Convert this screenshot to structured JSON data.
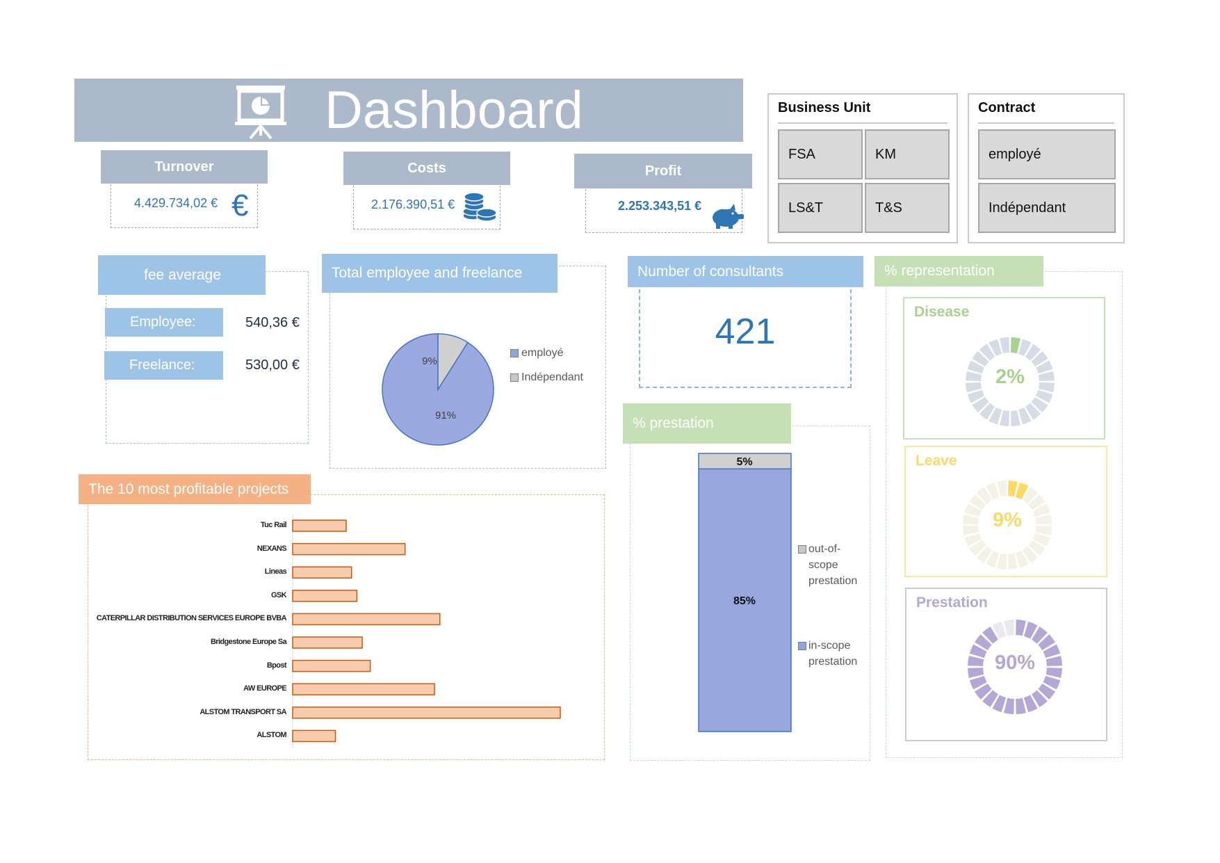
{
  "header": {
    "title": "Dashboard",
    "icon": "presentation-chart-icon",
    "color": "#acb9ca"
  },
  "kpis": {
    "turnover": {
      "label": "Turnover",
      "value": "4.429.734,02 €",
      "icon": "euro-icon"
    },
    "costs": {
      "label": "Costs",
      "value": "2.176.390,51 €",
      "icon": "coins-icon"
    },
    "profit": {
      "label": "Profit",
      "value": "2.253.343,51 €",
      "icon": "piggy-bank-icon"
    }
  },
  "slicers": {
    "business_unit": {
      "title": "Business Unit",
      "items": [
        "FSA",
        "KM",
        "LS&T",
        "T&S"
      ]
    },
    "contract": {
      "title": "Contract",
      "items": [
        "employé",
        "Indépendant"
      ]
    }
  },
  "fee_average": {
    "title": "fee average",
    "employee_label": "Employee:",
    "employee_value": "540,36 €",
    "freelance_label": "Freelance:",
    "freelance_value": "530,00 €"
  },
  "total_employee": {
    "title": "Total employee and freelance"
  },
  "consultants": {
    "title": "Number of consultants",
    "value": "421"
  },
  "prestation": {
    "title": "% prestation"
  },
  "projects": {
    "title": "The 10 most profitable projects"
  },
  "representation": {
    "title": "% representation",
    "items": [
      {
        "label": "Disease",
        "pct_label": "2%",
        "fraction": 0.02,
        "color": "#a9d18e",
        "track": "#d6dce5",
        "border": "#c5e0b4"
      },
      {
        "label": "Leave",
        "pct_label": "9%",
        "fraction": 0.09,
        "color": "#ffd966",
        "track": "#f2f2e6",
        "border": "#ffe699"
      },
      {
        "label": "Prestation",
        "pct_label": "90%",
        "fraction": 0.9,
        "color": "#b4a7d6",
        "track": "#e8e8ee",
        "border": "#c9c9dd"
      }
    ]
  },
  "chart_data": [
    {
      "type": "pie",
      "title": "Total employee and freelance",
      "categories": [
        "employé",
        "Indépendant"
      ],
      "values": [
        91,
        9
      ],
      "labels": [
        "91%",
        "9%"
      ],
      "colors": [
        "#9aaae0",
        "#d0d0d0"
      ]
    },
    {
      "type": "bar",
      "title": "% prestation",
      "stacked": true,
      "series": [
        {
          "name": "in-scope prestation",
          "values": [
            85
          ],
          "label": "85%",
          "color": "#97a7dc"
        },
        {
          "name": "out-of-scope prestation",
          "values": [
            5
          ],
          "label": "5%",
          "color": "#d0d0d0"
        }
      ],
      "legend": [
        {
          "name": "out-of-\nscope\nprestation",
          "color": "#c8c8c8"
        },
        {
          "name": "in-scope\nprestation",
          "color": "#8fa6dc"
        }
      ]
    },
    {
      "type": "bar",
      "orientation": "horizontal",
      "title": "The 10 most profitable projects",
      "categories": [
        "Tuc Rail",
        "NEXANS",
        "Lineas",
        "GSK",
        "CATERPILLAR DISTRIBUTION SERVICES EUROPE BVBA",
        "Bridgestone Europe Sa",
        "Bpost",
        "AW EUROPE",
        "ALSTOM TRANSPORT SA",
        "ALSTOM"
      ],
      "values": [
        20,
        42,
        22,
        24,
        55,
        26,
        29,
        53,
        100,
        16
      ],
      "xlim": [
        0,
        100
      ],
      "color": "#f8cbad",
      "edge": "#c55a11"
    }
  ]
}
